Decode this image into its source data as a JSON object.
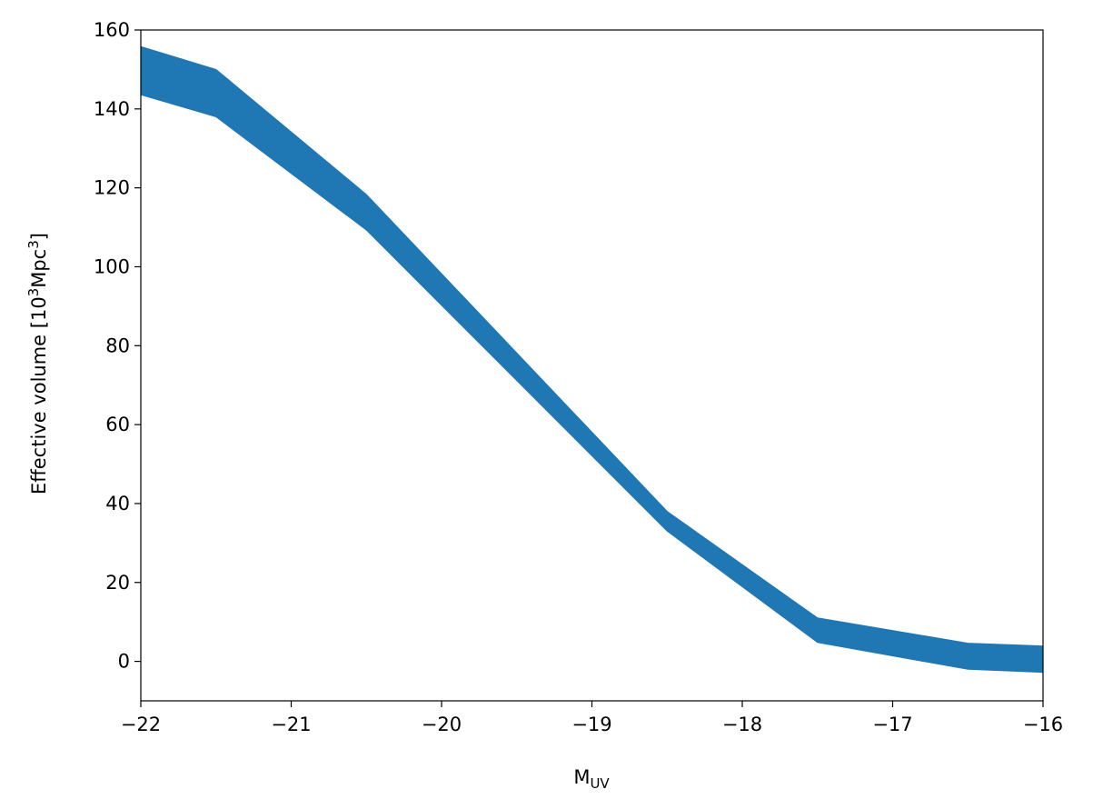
{
  "chart_data": {
    "type": "area",
    "x": [
      -22,
      -21.5,
      -20.5,
      -18.5,
      -17.5,
      -16.5,
      -16
    ],
    "series": [
      {
        "color": "#1f77b4",
        "upper": [
          155.8,
          150,
          118.3,
          38,
          11,
          4.6,
          3.9
        ],
        "lower": [
          143.6,
          138,
          109.3,
          33,
          4.8,
          -2,
          -2.8
        ]
      }
    ],
    "xlim": [
      -22,
      -16
    ],
    "xticks": [
      {
        "value": -22,
        "label": "−22"
      },
      {
        "value": -21,
        "label": "−21"
      },
      {
        "value": -20,
        "label": "−20"
      },
      {
        "value": -19,
        "label": "−19"
      },
      {
        "value": -18,
        "label": "−18"
      },
      {
        "value": -17,
        "label": "−17"
      },
      {
        "value": -16,
        "label": "−16"
      }
    ],
    "ylim": [
      -10,
      160
    ],
    "yticks": [
      0,
      20,
      40,
      60,
      80,
      100,
      120,
      140,
      160
    ],
    "xlabel_parts": [
      "M",
      "UV"
    ],
    "ylabel_parts": [
      "Effective volume [10",
      "3",
      "Mpc",
      "3",
      "]"
    ]
  }
}
